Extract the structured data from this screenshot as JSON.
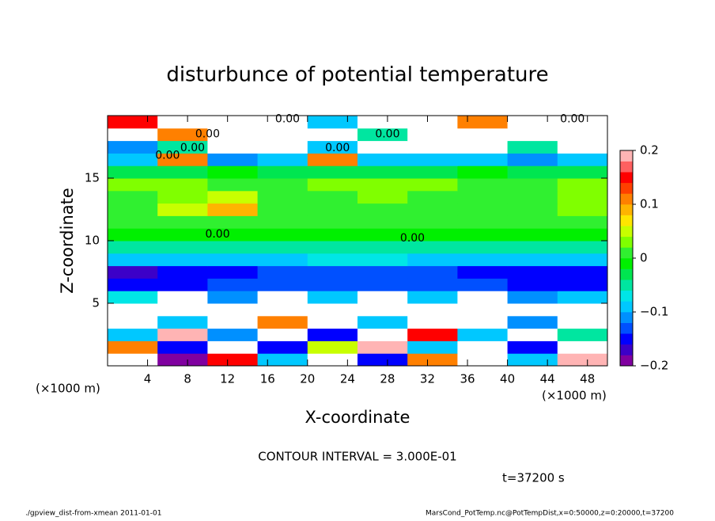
{
  "chart_data": {
    "type": "heatmap",
    "title": "disturbunce of potential temperature",
    "x_label": "X-coordinate",
    "y_label": "Z-coordinate",
    "x_unit": "(×1000 m)",
    "y_unit": "(×1000 m)",
    "note": "CONTOUR INTERVAL = 3.000E-01",
    "time_label": "t=37200 s",
    "footer_left": "./gpview_dist-from-xmean  2011-01-01",
    "footer_right": "MarsCond_PotTemp.nc@PotTempDist,x=0:50000,z=0:20000,t=37200",
    "xlim": [
      0,
      50
    ],
    "ylim": [
      0,
      20
    ],
    "xticks": [
      4,
      8,
      12,
      16,
      20,
      24,
      28,
      32,
      36,
      40,
      44,
      48
    ],
    "yticks": [
      5,
      10,
      15
    ],
    "clim": [
      -0.2,
      0.2
    ],
    "cticks": [
      0.2,
      0.1,
      0,
      {
        "value": -0.1,
        "label": "−0.1"
      },
      {
        "value": -0.2,
        "label": "−0.2"
      }
    ],
    "colors": [
      "#8000a0",
      "#3c00c8",
      "#0000ff",
      "#0050ff",
      "#0090ff",
      "#00c8ff",
      "#00e6e6",
      "#00e6a0",
      "#00e650",
      "#00f000",
      "#30f030",
      "#80ff00",
      "#c8ff00",
      "#ffe600",
      "#ffb400",
      "#ff8000",
      "#ff4000",
      "#ff0000",
      "#ff6060",
      "#ffb4b4"
    ],
    "over_color": "#ffffff",
    "x": [
      2.5,
      7.5,
      12.5,
      17.5,
      22.5,
      27.5,
      32.5,
      37.5,
      42.5,
      47.5
    ],
    "z": [
      0.5,
      1.5,
      2.5,
      3.5,
      4.5,
      5.5,
      6.5,
      7.5,
      8.5,
      9.5,
      10.5,
      11.5,
      12.5,
      13.5,
      14.5,
      15.5,
      16.5,
      17.5,
      18.5,
      19.5
    ],
    "values": [
      [
        0.25,
        -0.2,
        0.15,
        -0.1,
        0.25,
        -0.15,
        0.1,
        0.25,
        -0.1,
        0.2
      ],
      [
        0.1,
        -0.15,
        0.25,
        -0.15,
        0.05,
        0.2,
        -0.1,
        0.25,
        -0.15,
        0.25
      ],
      [
        -0.1,
        0.2,
        -0.12,
        0.25,
        -0.15,
        0.25,
        0.15,
        -0.1,
        0.25,
        -0.05
      ],
      [
        0.25,
        -0.1,
        0.25,
        0.1,
        0.25,
        -0.1,
        0.25,
        0.25,
        -0.12,
        0.25
      ],
      [
        0.25,
        0.25,
        0.25,
        0.25,
        0.25,
        0.25,
        0.25,
        0.25,
        0.25,
        0.25
      ],
      [
        -0.08,
        0.25,
        -0.12,
        0.25,
        -0.1,
        0.25,
        -0.1,
        0.25,
        -0.12,
        -0.1
      ],
      [
        -0.16,
        -0.15,
        -0.14,
        -0.14,
        -0.13,
        -0.14,
        -0.13,
        -0.14,
        -0.15,
        -0.15
      ],
      [
        -0.17,
        -0.16,
        -0.15,
        -0.14,
        -0.14,
        -0.13,
        -0.14,
        -0.15,
        -0.16,
        -0.16
      ],
      [
        -0.1,
        -0.1,
        -0.09,
        -0.09,
        -0.08,
        -0.08,
        -0.09,
        -0.09,
        -0.1,
        -0.1
      ],
      [
        -0.05,
        -0.05,
        -0.04,
        -0.04,
        -0.04,
        -0.04,
        -0.04,
        -0.05,
        -0.05,
        -0.05
      ],
      [
        -0.02,
        -0.02,
        -0.01,
        -0.01,
        -0.02,
        -0.02,
        -0.02,
        -0.01,
        -0.02,
        -0.02
      ],
      [
        0.01,
        0.02,
        0.01,
        0,
        0,
        0.01,
        0,
        0.01,
        0.01,
        0.01
      ],
      [
        0.02,
        0.05,
        0.08,
        0.02,
        0.01,
        0.02,
        0.02,
        0.01,
        0.02,
        0.03
      ],
      [
        0.02,
        0.03,
        0.04,
        0.02,
        0.02,
        0.03,
        0.02,
        0.02,
        0.02,
        0.03
      ],
      [
        0.03,
        0.03,
        0.02,
        0.02,
        0.03,
        0.03,
        0.03,
        0.02,
        0.02,
        0.03
      ],
      [
        -0.03,
        -0.03,
        -0.02,
        -0.03,
        -0.03,
        -0.03,
        -0.03,
        -0.02,
        -0.03,
        -0.03
      ],
      [
        -0.1,
        0.12,
        -0.11,
        -0.1,
        0.1,
        -0.1,
        -0.1,
        -0.1,
        -0.11,
        -0.1
      ],
      [
        -0.12,
        -0.05,
        0.25,
        0.25,
        -0.1,
        0.25,
        0.25,
        0.25,
        -0.05,
        0.25
      ],
      [
        0.25,
        0.1,
        0.25,
        0.25,
        0.25,
        -0.05,
        0.25,
        0.25,
        0.25,
        0.25
      ],
      [
        0.15,
        0.25,
        0.25,
        0.25,
        -0.1,
        0.25,
        0.25,
        0.1,
        0.25,
        0.25
      ]
    ],
    "annotations": [
      {
        "text": "0.00",
        "x": 18,
        "z": 19.7
      },
      {
        "text": "0.00",
        "x": 46.5,
        "z": 19.7
      },
      {
        "text": "0.00",
        "x": 10,
        "z": 18.5
      },
      {
        "text": "0.00",
        "x": 28,
        "z": 18.5
      },
      {
        "text": "0.00",
        "x": 8.5,
        "z": 17.4
      },
      {
        "text": "0.00",
        "x": 23,
        "z": 17.4
      },
      {
        "text": "0.00",
        "x": 6,
        "z": 16.8
      },
      {
        "text": "0.00",
        "x": 11,
        "z": 10.5
      },
      {
        "text": "0.00",
        "x": 30.5,
        "z": 10.2
      }
    ]
  }
}
